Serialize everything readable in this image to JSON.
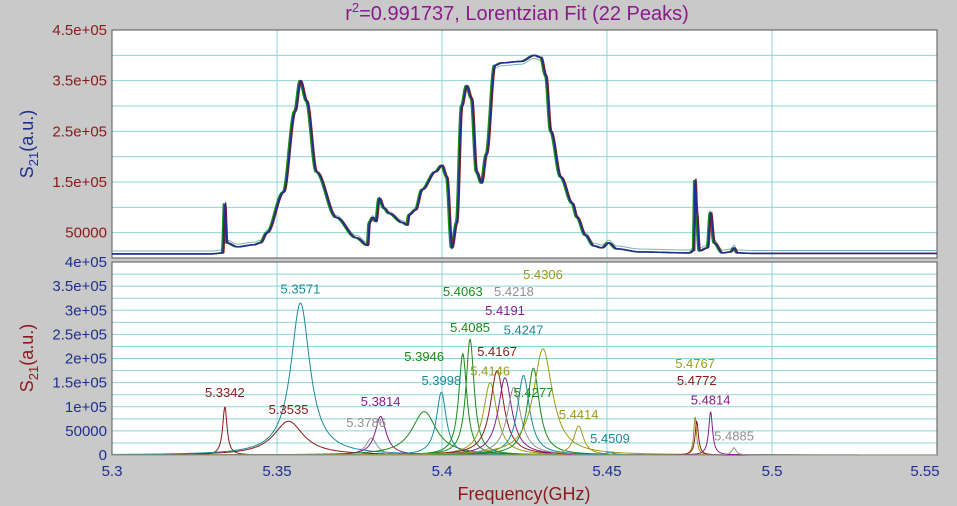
{
  "title": {
    "main": "r",
    "sup": "2",
    "rest": "=0.991737, Lorentzian Fit (22 Peaks)"
  },
  "chart_data": [
    {
      "type": "line",
      "panel": "top",
      "ylabel": {
        "base": "S",
        "sub": "21",
        "rest": "(a.u.)"
      },
      "xlim": [
        5.3,
        5.55
      ],
      "ylim": [
        0,
        450000
      ],
      "yticks": [
        50000,
        150000,
        250000,
        350000,
        450000
      ],
      "ytick_labels": [
        "50000",
        "1.5e+05",
        "2.5e+05",
        "3.5e+05",
        "4.5e+05"
      ],
      "grid": true,
      "series": [
        {
          "color": "#1f2f8f"
        },
        {
          "color": "#8b1a1a"
        },
        {
          "color": "#1a8f1a"
        },
        {
          "color": "#7fb3b3"
        }
      ],
      "measured_anchors": [
        [
          5.3,
          8000
        ],
        [
          5.33,
          8000
        ],
        [
          5.3336,
          10000
        ],
        [
          5.3342,
          110000
        ],
        [
          5.3348,
          30000
        ],
        [
          5.338,
          22000
        ],
        [
          5.343,
          26000
        ],
        [
          5.345,
          30000
        ],
        [
          5.347,
          50000
        ],
        [
          5.352,
          130000
        ],
        [
          5.3555,
          290000
        ],
        [
          5.3571,
          350000
        ],
        [
          5.359,
          310000
        ],
        [
          5.362,
          170000
        ],
        [
          5.368,
          80000
        ],
        [
          5.374,
          40000
        ],
        [
          5.3775,
          25000
        ],
        [
          5.378,
          70000
        ],
        [
          5.379,
          80000
        ],
        [
          5.38,
          72000
        ],
        [
          5.381,
          118000
        ],
        [
          5.3825,
          98000
        ],
        [
          5.384,
          88000
        ],
        [
          5.388,
          70000
        ],
        [
          5.3895,
          65000
        ],
        [
          5.39,
          85000
        ],
        [
          5.392,
          95000
        ],
        [
          5.394,
          135000
        ],
        [
          5.398,
          170000
        ],
        [
          5.4,
          183000
        ],
        [
          5.4015,
          160000
        ],
        [
          5.403,
          20000
        ],
        [
          5.4045,
          70000
        ],
        [
          5.406,
          300000
        ],
        [
          5.4075,
          340000
        ],
        [
          5.409,
          315000
        ],
        [
          5.4105,
          170000
        ],
        [
          5.412,
          148000
        ],
        [
          5.4135,
          205000
        ],
        [
          5.416,
          380000
        ],
        [
          5.418,
          385000
        ],
        [
          5.424,
          388000
        ],
        [
          5.428,
          400000
        ],
        [
          5.43,
          396000
        ],
        [
          5.4315,
          360000
        ],
        [
          5.433,
          250000
        ],
        [
          5.436,
          160000
        ],
        [
          5.4395,
          108000
        ],
        [
          5.441,
          80000
        ],
        [
          5.4435,
          45000
        ],
        [
          5.446,
          24000
        ],
        [
          5.4485,
          20000
        ],
        [
          5.4505,
          30000
        ],
        [
          5.453,
          18000
        ],
        [
          5.46,
          12000
        ],
        [
          5.475,
          10000
        ],
        [
          5.4763,
          15000
        ],
        [
          5.4767,
          160000
        ],
        [
          5.4772,
          90000
        ],
        [
          5.478,
          14000
        ],
        [
          5.4805,
          20000
        ],
        [
          5.4814,
          90000
        ],
        [
          5.4825,
          30000
        ],
        [
          5.485,
          10000
        ],
        [
          5.4875,
          12000
        ],
        [
          5.4885,
          20000
        ],
        [
          5.4895,
          10000
        ],
        [
          5.495,
          9000
        ],
        [
          5.55,
          9000
        ]
      ]
    },
    {
      "type": "line",
      "panel": "bottom",
      "xlabel": "Frequency(GHz)",
      "ylabel": {
        "base": "S",
        "sub": "21",
        "rest": "(a.u.)"
      },
      "xlim": [
        5.3,
        5.55
      ],
      "ylim": [
        0,
        400000
      ],
      "xticks": [
        5.3,
        5.35,
        5.4,
        5.45,
        5.5,
        5.55
      ],
      "xtick_labels": [
        "5.3",
        "5.35",
        "5.4",
        "5.45",
        "5.5",
        "5.55"
      ],
      "yticks": [
        0,
        50000,
        100000,
        150000,
        200000,
        250000,
        300000,
        350000,
        400000
      ],
      "ytick_labels": [
        "0",
        "50000",
        "1e+05",
        "1.5e+05",
        "2e+05",
        "2.5e+05",
        "3e+05",
        "3.5e+05",
        "4e+05"
      ],
      "grid": true,
      "peaks": [
        {
          "label": "5.3342",
          "center": 5.3342,
          "amp": 100000,
          "width": 0.0008,
          "color": "#8b1a1a",
          "label_pos": [
            5.3342,
            120000
          ]
        },
        {
          "label": "5.3535",
          "center": 5.3535,
          "amp": 70000,
          "width": 0.0055,
          "color": "#8b1a1a",
          "label_pos": [
            5.3535,
            85000
          ]
        },
        {
          "label": "5.3571",
          "center": 5.3571,
          "amp": 315000,
          "width": 0.0035,
          "color": "#1a8a9a",
          "label_pos": [
            5.3571,
            335000
          ]
        },
        {
          "label": "5.3786",
          "center": 5.3786,
          "amp": 35000,
          "width": 0.002,
          "color": "#909090",
          "label_pos": [
            5.377,
            58000
          ]
        },
        {
          "label": "5.3814",
          "center": 5.3814,
          "amp": 80000,
          "width": 0.002,
          "color": "#8b1a8b",
          "label_pos": [
            5.3814,
            102000
          ]
        },
        {
          "label": "5.3946",
          "center": 5.3946,
          "amp": 90000,
          "width": 0.0045,
          "color": "#1a8a1a",
          "label_pos": [
            5.3946,
            195000
          ]
        },
        {
          "label": "5.3998",
          "center": 5.3998,
          "amp": 130000,
          "width": 0.0018,
          "color": "#1a8a9a",
          "label_pos": [
            5.3998,
            145000
          ]
        },
        {
          "label": "5.4063",
          "center": 5.4063,
          "amp": 210000,
          "width": 0.0015,
          "color": "#1a8a1a",
          "label_pos": [
            5.4063,
            330000
          ]
        },
        {
          "label": "5.4085",
          "center": 5.4085,
          "amp": 240000,
          "width": 0.0015,
          "color": "#1a8a1a",
          "label_pos": [
            5.4085,
            255000
          ]
        },
        {
          "label": "5.4146",
          "center": 5.4146,
          "amp": 150000,
          "width": 0.0025,
          "color": "#9a9a1a",
          "label_pos": [
            5.4146,
            165000
          ]
        },
        {
          "label": "5.4167",
          "center": 5.4167,
          "amp": 175000,
          "width": 0.0025,
          "color": "#8b1a1a",
          "label_pos": [
            5.4167,
            205000
          ]
        },
        {
          "label": "5.4191",
          "center": 5.4191,
          "amp": 160000,
          "width": 0.0025,
          "color": "#8b1a8b",
          "label_pos": [
            5.4191,
            290000
          ]
        },
        {
          "label": "5.4218",
          "center": 5.4218,
          "amp": 140000,
          "width": 0.0025,
          "color": "#909090",
          "label_pos": [
            5.4218,
            330000
          ]
        },
        {
          "label": "5.4247",
          "center": 5.4247,
          "amp": 165000,
          "width": 0.0022,
          "color": "#1a8a9a",
          "label_pos": [
            5.4247,
            250000
          ]
        },
        {
          "label": "5.4277",
          "center": 5.4277,
          "amp": 180000,
          "width": 0.0022,
          "color": "#1a8a1a",
          "label_pos": [
            5.4277,
            120000
          ]
        },
        {
          "label": "5.4306",
          "center": 5.4306,
          "amp": 220000,
          "width": 0.0035,
          "color": "#9a9a1a",
          "label_pos": [
            5.4306,
            365000
          ]
        },
        {
          "label": "5.4414",
          "center": 5.4414,
          "amp": 60000,
          "width": 0.0018,
          "color": "#9a9a1a",
          "label_pos": [
            5.4414,
            75000
          ]
        },
        {
          "label": "5.4509",
          "center": 5.4509,
          "amp": 6000,
          "width": 0.0015,
          "color": "#1a8a9a",
          "label_pos": [
            5.4509,
            25000
          ]
        },
        {
          "label": "5.4767",
          "center": 5.4767,
          "amp": 80000,
          "width": 0.0005,
          "color": "#9a9a1a",
          "label_pos": [
            5.4767,
            180000
          ]
        },
        {
          "label": "5.4772",
          "center": 5.4772,
          "amp": 70000,
          "width": 0.0006,
          "color": "#8b1a1a",
          "label_pos": [
            5.4772,
            145000
          ]
        },
        {
          "label": "5.4814",
          "center": 5.4814,
          "amp": 90000,
          "width": 0.0007,
          "color": "#8b1a8b",
          "label_pos": [
            5.4814,
            105000
          ]
        },
        {
          "label": "5.4885",
          "center": 5.4885,
          "amp": 15000,
          "width": 0.0008,
          "color": "#909090",
          "label_pos": [
            5.4885,
            30000
          ]
        }
      ]
    }
  ]
}
